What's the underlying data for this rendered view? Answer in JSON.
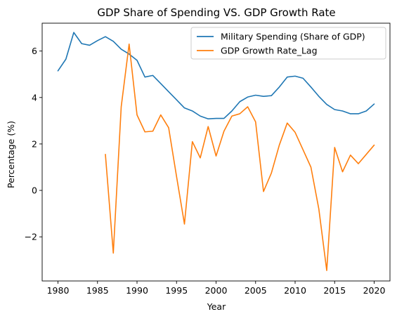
{
  "chart_data": {
    "type": "line",
    "title": "GDP Share of Spending VS. GDP Growth Rate",
    "xlabel": "Year",
    "ylabel": "Percentage (%)",
    "xlim": [
      1978,
      2022
    ],
    "ylim": [
      -3.9,
      7.2
    ],
    "x_ticks": [
      1980,
      1985,
      1990,
      1995,
      2000,
      2005,
      2010,
      2015,
      2020
    ],
    "x_tick_labels": [
      "1980",
      "1985",
      "1990",
      "1995",
      "2000",
      "2005",
      "2010",
      "2015",
      "2020"
    ],
    "y_ticks": [
      -2,
      0,
      2,
      4,
      6
    ],
    "y_tick_labels": [
      "−2",
      "0",
      "2",
      "4",
      "6"
    ],
    "grid": false,
    "legend_position": "top-right",
    "series": [
      {
        "name": "Military Spending (Share of GDP)",
        "color": "#1f77b4",
        "x": [
          1980,
          1981,
          1982,
          1983,
          1984,
          1985,
          1986,
          1987,
          1988,
          1989,
          1990,
          1991,
          1992,
          1993,
          1994,
          1995,
          1996,
          1997,
          1998,
          1999,
          2000,
          2001,
          2002,
          2003,
          2004,
          2005,
          2006,
          2007,
          2008,
          2009,
          2010,
          2011,
          2012,
          2013,
          2014,
          2015,
          2016,
          2017,
          2018,
          2019,
          2020
        ],
        "values": [
          5.15,
          5.65,
          6.8,
          6.32,
          6.25,
          6.45,
          6.62,
          6.42,
          6.08,
          5.87,
          5.6,
          4.88,
          4.95,
          4.6,
          4.25,
          3.9,
          3.55,
          3.42,
          3.2,
          3.08,
          3.1,
          3.1,
          3.42,
          3.82,
          4.02,
          4.1,
          4.05,
          4.08,
          4.45,
          4.88,
          4.92,
          4.83,
          4.45,
          4.05,
          3.7,
          3.48,
          3.42,
          3.3,
          3.3,
          3.42,
          3.72
        ]
      },
      {
        "name": "GDP Growth Rate_Lag",
        "color": "#ff7f0e",
        "x": [
          1986,
          1987,
          1988,
          1989,
          1990,
          1991,
          1992,
          1993,
          1994,
          1995,
          1996,
          1997,
          1998,
          1999,
          2000,
          2001,
          2002,
          2003,
          2004,
          2005,
          2006,
          2007,
          2008,
          2009,
          2010,
          2011,
          2012,
          2013,
          2014,
          2015,
          2016,
          2017,
          2018,
          2019,
          2020
        ],
        "values": [
          1.55,
          -2.7,
          3.6,
          6.3,
          3.25,
          2.52,
          2.55,
          3.25,
          2.7,
          0.6,
          -1.45,
          2.1,
          1.4,
          2.75,
          1.48,
          2.55,
          3.2,
          3.3,
          3.6,
          2.95,
          -0.05,
          0.75,
          1.95,
          2.9,
          2.5,
          1.75,
          1.0,
          -0.8,
          -3.45,
          1.85,
          0.8,
          1.52,
          1.15,
          1.55,
          1.95
        ]
      }
    ]
  }
}
